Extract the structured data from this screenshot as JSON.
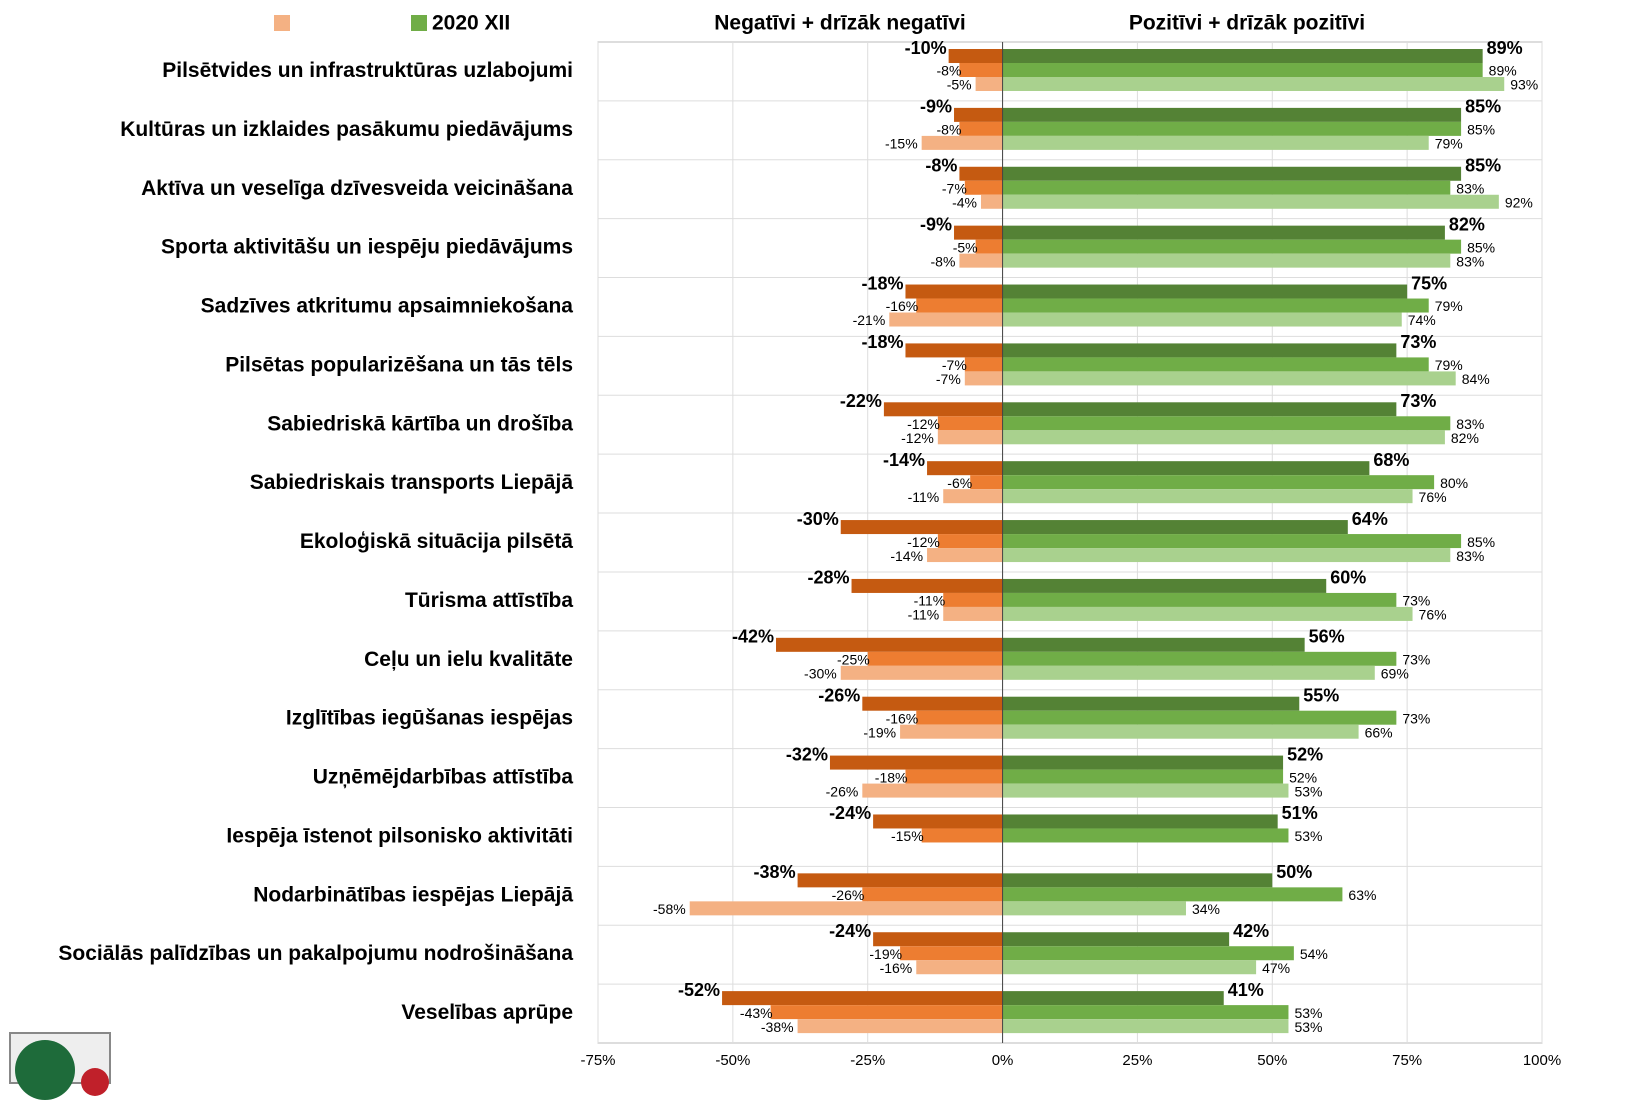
{
  "chart_data": {
    "type": "bar",
    "orientation": "horizontal",
    "headers": [
      "Negatīvi + drīzāk negatīvi",
      "Pozitīvi + drīzāk pozitīvi"
    ],
    "categories": [
      "Pilsētvides un infrastruktūras uzlabojumi",
      "Kultūras un izklaides pasākumu piedāvājums",
      "Aktīva un veselīga dzīvesveida veicināšana",
      "Sporta aktivitāšu un iespēju piedāvājums",
      "Sadzīves atkritumu apsaimniekošana",
      "Pilsētas popularizēšana un tās tēls",
      "Sabiedriskā kārtība un drošība",
      "Sabiedriskais transports Liepājā",
      "Ekoloģiskā situācija pilsētā",
      "Tūrisma attīstība",
      "Ceļu un ielu kvalitāte",
      "Izglītības iegūšanas iespējas",
      "Uzņēmējdarbības attīstība",
      "Iespēja īstenot pilsonisko aktivitāti",
      "Nodarbinātības iespējas Liepājā",
      "Sociālās palīdzības un pakalpojumu nodrošināšana",
      "Veselības aprūpe"
    ],
    "series": [
      {
        "color": "#c55a11",
        "values": [
          -10,
          -9,
          -8,
          -9,
          -18,
          -18,
          -22,
          -14,
          -30,
          -28,
          -42,
          -26,
          -32,
          -24,
          -38,
          -24,
          -52
        ],
        "value_labels": [
          "-10%",
          "-9%",
          "-8%",
          "-9%",
          "-18%",
          "-18%",
          "-22%",
          "-14%",
          "-30%",
          "-28%",
          "-42%",
          "-26%",
          "-32%",
          "-24%",
          "-38%",
          "-24%",
          "-52%"
        ]
      },
      {
        "color": "#ed7d31",
        "values": [
          -8,
          -8,
          -7,
          -5,
          -16,
          -7,
          -12,
          -6,
          -12,
          -11,
          -25,
          -16,
          -18,
          -15,
          -26,
          -19,
          -43
        ],
        "value_labels": [
          "-8%",
          "-8%",
          "-7%",
          "-5%",
          "-16%",
          "-7%",
          "-12%",
          "-6%",
          "-12%",
          "-11%",
          "-25%",
          "-16%",
          "-18%",
          "-15%",
          "-26%",
          "-19%",
          "-43%"
        ]
      },
      {
        "color": "#f4b183",
        "legend": true,
        "values": [
          -5,
          -15,
          -4,
          -8,
          -21,
          -7,
          -12,
          -11,
          -14,
          -11,
          -30,
          -19,
          -26,
          null,
          -58,
          -16,
          -38
        ],
        "value_labels": [
          "-5%",
          "-15%",
          "-4%",
          "-8%",
          "-21%",
          "-7%",
          "-12%",
          "-11%",
          "-14%",
          "-11%",
          "-30%",
          "-19%",
          "-26%",
          null,
          "-58%",
          "-16%",
          "-38%"
        ]
      },
      {
        "color": "#548235",
        "values": [
          89,
          85,
          85,
          82,
          75,
          73,
          73,
          68,
          64,
          60,
          56,
          55,
          52,
          51,
          50,
          42,
          41
        ],
        "value_labels": [
          "89%",
          "85%",
          "85%",
          "82%",
          "75%",
          "73%",
          "73%",
          "68%",
          "64%",
          "60%",
          "56%",
          "55%",
          "52%",
          "51%",
          "50%",
          "42%",
          "41%"
        ]
      },
      {
        "name": "2020 XII",
        "color": "#70ad47",
        "legend": true,
        "values": [
          89,
          85,
          83,
          85,
          79,
          79,
          83,
          80,
          85,
          73,
          73,
          73,
          52,
          53,
          63,
          54,
          53
        ],
        "value_labels": [
          "89%",
          "85%",
          "83%",
          "85%",
          "79%",
          "79%",
          "83%",
          "80%",
          "85%",
          "73%",
          "73%",
          "73%",
          "52%",
          "53%",
          "63%",
          "54%",
          "53%"
        ]
      },
      {
        "color": "#a9d18e",
        "values": [
          93,
          79,
          92,
          83,
          74,
          84,
          82,
          76,
          83,
          76,
          69,
          66,
          53,
          null,
          34,
          47,
          53
        ],
        "value_labels": [
          "93%",
          "79%",
          "92%",
          "83%",
          "74%",
          "84%",
          "82%",
          "76%",
          "83%",
          "76%",
          "69%",
          "66%",
          "53%",
          null,
          "34%",
          "47%",
          "53%"
        ]
      }
    ],
    "xlim": [
      -75,
      100
    ],
    "xticks": [
      {
        "value": -75,
        "label": "-75%"
      },
      {
        "value": -50,
        "label": "-50%"
      },
      {
        "value": -25,
        "label": "-25%"
      },
      {
        "value": 0,
        "label": "0%"
      },
      {
        "value": 25,
        "label": "25%"
      },
      {
        "value": 50,
        "label": "50%"
      },
      {
        "value": 75,
        "label": "75%"
      },
      {
        "value": 100,
        "label": "100%"
      }
    ],
    "grid": true
  }
}
